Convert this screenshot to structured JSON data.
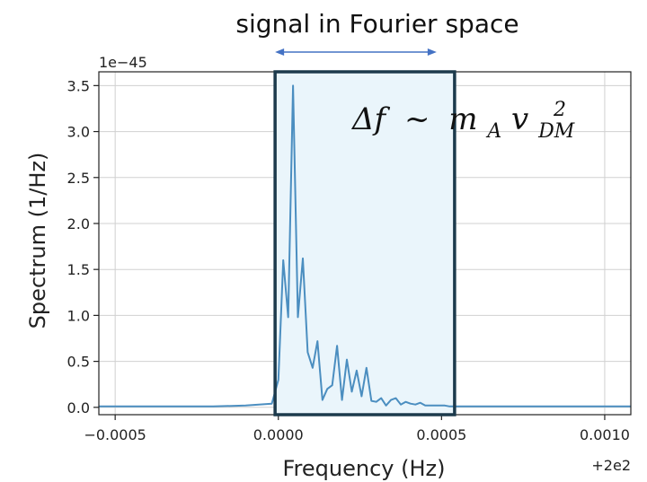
{
  "chart_data": {
    "type": "line",
    "title": "",
    "xlabel": "Frequency (Hz)",
    "ylabel": "Spectrum (1/Hz)",
    "x_offset_label": "+2e2",
    "y_scale_label": "1e−45",
    "x_ticks": [
      {
        "value": -0.0005,
        "label": "−0.0005"
      },
      {
        "value": 0.0,
        "label": "0.0000"
      },
      {
        "value": 0.0005,
        "label": "0.0005"
      },
      {
        "value": 0.001,
        "label": "0.0010"
      }
    ],
    "y_ticks": [
      {
        "value": 0.0,
        "label": "0.0"
      },
      {
        "value": 0.5,
        "label": "0.5"
      },
      {
        "value": 1.0,
        "label": "1.0"
      },
      {
        "value": 1.5,
        "label": "1.5"
      },
      {
        "value": 2.0,
        "label": "2.0"
      },
      {
        "value": 2.5,
        "label": "2.5"
      },
      {
        "value": 3.0,
        "label": "3.0"
      },
      {
        "value": 3.5,
        "label": "3.5"
      }
    ],
    "xlim": [
      -0.00055,
      0.00108
    ],
    "ylim": [
      -0.08,
      3.65
    ],
    "grid": true,
    "series": [
      {
        "color": "#4b8ec0",
        "x": [
          -0.00055,
          -0.0004,
          -0.0003,
          -0.0002,
          -0.0001,
          -2e-05,
          0.0,
          1.5e-05,
          3e-05,
          4.5e-05,
          6e-05,
          7.5e-05,
          9e-05,
          0.000105,
          0.00012,
          0.000135,
          0.00015,
          0.000165,
          0.00018,
          0.000195,
          0.00021,
          0.000225,
          0.00024,
          0.000255,
          0.00027,
          0.000285,
          0.0003,
          0.000315,
          0.00033,
          0.000345,
          0.00036,
          0.000375,
          0.00039,
          0.000405,
          0.00042,
          0.000435,
          0.00045,
          0.000465,
          0.00048,
          0.000495,
          0.00051,
          0.000525,
          0.00054,
          0.00056,
          0.0006,
          0.0007,
          0.0008,
          0.0009,
          0.001,
          0.00108
        ],
        "values": [
          0.01,
          0.01,
          0.01,
          0.01,
          0.02,
          0.04,
          0.3,
          1.6,
          0.98,
          3.5,
          0.98,
          1.62,
          0.6,
          0.43,
          0.72,
          0.08,
          0.2,
          0.24,
          0.67,
          0.08,
          0.52,
          0.17,
          0.4,
          0.12,
          0.43,
          0.07,
          0.06,
          0.1,
          0.02,
          0.08,
          0.1,
          0.03,
          0.06,
          0.04,
          0.03,
          0.05,
          0.02,
          0.02,
          0.02,
          0.02,
          0.02,
          0.01,
          0.01,
          0.01,
          0.01,
          0.01,
          0.01,
          0.01,
          0.01,
          0.01
        ]
      }
    ]
  },
  "annotation": {
    "title": "signal in Fourier space",
    "region_x": [
      -1e-05,
      0.00054
    ],
    "fill_color": "#eaf5fb",
    "border_color": "#1c3a4c",
    "arrow_color": "#4472c4"
  },
  "formula": {
    "lhs": "Δf",
    "op": "~",
    "m": "m",
    "m_sub": "A",
    "v": "v",
    "v_sub": "DM",
    "v_sup": "2"
  }
}
